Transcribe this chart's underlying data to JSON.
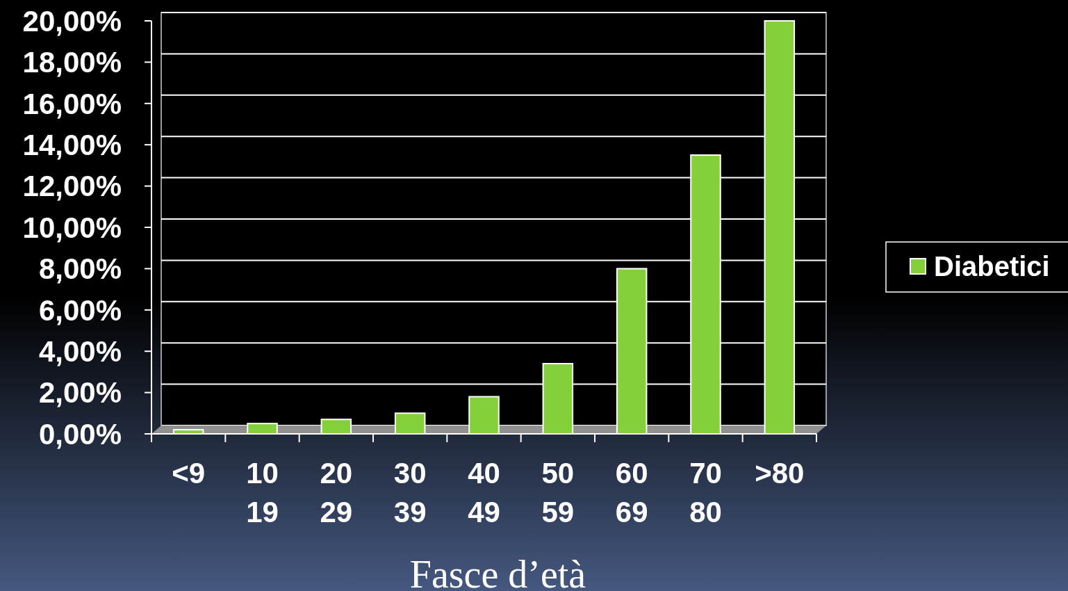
{
  "chart_data": {
    "type": "bar",
    "xlabel": "Fasce d’età",
    "categories": [
      "<9",
      "10\n19",
      "20\n29",
      "30\n39",
      "40\n49",
      "50\n59",
      "60\n69",
      "70\n80",
      ">80"
    ],
    "series": [
      {
        "name": "Diabetici",
        "color": "#83d03a",
        "values": [
          0.2,
          0.5,
          0.7,
          1.0,
          1.8,
          3.4,
          8.0,
          13.5,
          20.0
        ]
      }
    ],
    "ylim": [
      0,
      20
    ],
    "yticks": [
      {
        "value": 0,
        "label": "0,00%"
      },
      {
        "value": 2,
        "label": "2,00%"
      },
      {
        "value": 4,
        "label": "4,00%"
      },
      {
        "value": 6,
        "label": "6,00%"
      },
      {
        "value": 8,
        "label": "8,00%"
      },
      {
        "value": 10,
        "label": "10,00%"
      },
      {
        "value": 12,
        "label": "12,00%"
      },
      {
        "value": 14,
        "label": "14,00%"
      },
      {
        "value": 16,
        "label": "16,00%"
      },
      {
        "value": 18,
        "label": "18,00%"
      },
      {
        "value": 20,
        "label": "20,00%"
      }
    ],
    "grid": "y",
    "legend": "right"
  }
}
